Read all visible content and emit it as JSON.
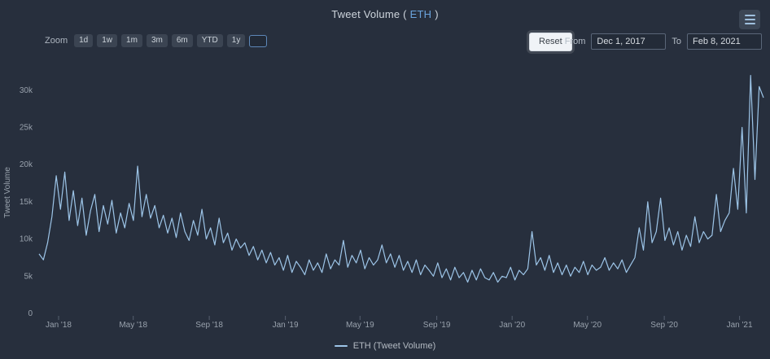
{
  "header": {
    "title_prefix": "Tweet Volume (",
    "title_symbol": "ETH",
    "title_suffix": ")"
  },
  "toolbar": {
    "zoom_label": "Zoom",
    "zoom_buttons": [
      {
        "label": "1d"
      },
      {
        "label": "1w"
      },
      {
        "label": "1m"
      },
      {
        "label": "3m"
      },
      {
        "label": "6m"
      },
      {
        "label": "YTD"
      },
      {
        "label": "1y"
      }
    ],
    "zoom_all": {
      "label": ""
    },
    "reset_label": "Reset",
    "from_label": "From",
    "from_value": "Dec 1, 2017",
    "to_label": "To",
    "to_value": "Feb 8, 2021"
  },
  "legend": {
    "label": "ETH (Tweet Volume)"
  },
  "colors": {
    "background": "#272f3d",
    "line": "#9dc5e8",
    "accent": "#6aa3dc",
    "axis_text": "#98a1ac",
    "tick": "#566070"
  },
  "chart_data": {
    "type": "line",
    "title": "Tweet Volume (ETH)",
    "xlabel": "",
    "ylabel": "Tweet Volume",
    "x_range": [
      "Dec 1, 2017",
      "Feb 8, 2021"
    ],
    "ylim": [
      0,
      32.5
    ],
    "grid": false,
    "legend_position": "bottom",
    "yticks": [
      {
        "v": 0,
        "label": "0"
      },
      {
        "v": 5,
        "label": "5k"
      },
      {
        "v": 10,
        "label": "10k"
      },
      {
        "v": 15,
        "label": "15k"
      },
      {
        "v": 20,
        "label": "20k"
      },
      {
        "v": 25,
        "label": "25k"
      },
      {
        "v": 30,
        "label": "30k"
      }
    ],
    "xticks": [
      {
        "f": 0.027,
        "label": "Jan '18"
      },
      {
        "f": 0.13,
        "label": "May '18"
      },
      {
        "f": 0.235,
        "label": "Sep '18"
      },
      {
        "f": 0.34,
        "label": "Jan '19"
      },
      {
        "f": 0.443,
        "label": "May '19"
      },
      {
        "f": 0.549,
        "label": "Sep '19"
      },
      {
        "f": 0.653,
        "label": "Jan '20"
      },
      {
        "f": 0.757,
        "label": "May '20"
      },
      {
        "f": 0.863,
        "label": "Sep '20"
      },
      {
        "f": 0.967,
        "label": "Jan '21"
      }
    ],
    "series": [
      {
        "name": "ETH (Tweet Volume)",
        "values_unit": "thousands of tweets",
        "values": [
          8.0,
          7.2,
          9.5,
          13.0,
          18.5,
          14.0,
          19.0,
          12.5,
          16.5,
          11.8,
          15.5,
          10.5,
          13.8,
          16.0,
          11.0,
          14.5,
          12.0,
          15.2,
          10.8,
          13.5,
          11.5,
          14.8,
          12.5,
          19.8,
          13.0,
          16.0,
          12.8,
          14.5,
          11.5,
          13.2,
          10.8,
          12.8,
          10.2,
          13.5,
          11.0,
          9.8,
          12.5,
          10.5,
          14.0,
          10.0,
          11.5,
          9.2,
          12.8,
          9.5,
          10.8,
          8.5,
          10.0,
          8.8,
          9.5,
          7.8,
          9.0,
          7.2,
          8.5,
          6.8,
          8.2,
          6.5,
          7.5,
          5.8,
          7.8,
          5.5,
          7.0,
          6.2,
          5.2,
          7.2,
          5.8,
          6.8,
          5.5,
          8.0,
          6.0,
          7.2,
          6.5,
          9.8,
          6.2,
          7.8,
          6.8,
          8.5,
          6.0,
          7.5,
          6.5,
          7.2,
          9.2,
          6.8,
          8.0,
          6.2,
          7.8,
          5.8,
          7.0,
          5.5,
          7.2,
          5.2,
          6.5,
          5.8,
          5.0,
          6.8,
          4.8,
          6.0,
          4.5,
          6.2,
          4.8,
          5.5,
          4.2,
          5.8,
          4.5,
          6.0,
          4.8,
          4.5,
          5.5,
          4.2,
          5.0,
          4.8,
          6.2,
          4.5,
          5.8,
          5.2,
          6.0,
          11.0,
          6.5,
          7.5,
          5.8,
          7.8,
          5.5,
          6.8,
          5.2,
          6.5,
          5.0,
          6.2,
          5.5,
          7.0,
          5.2,
          6.5,
          5.8,
          6.2,
          7.5,
          5.8,
          6.8,
          6.0,
          7.2,
          5.5,
          6.5,
          7.5,
          11.5,
          8.5,
          15.0,
          9.5,
          11.0,
          15.5,
          9.8,
          11.5,
          9.2,
          11.0,
          8.5,
          10.5,
          9.0,
          13.0,
          9.5,
          11.0,
          10.0,
          10.5,
          16.0,
          11.0,
          12.5,
          13.5,
          19.5,
          14.0,
          25.0,
          13.5,
          32.0,
          18.0,
          30.5,
          29.0
        ]
      }
    ]
  }
}
